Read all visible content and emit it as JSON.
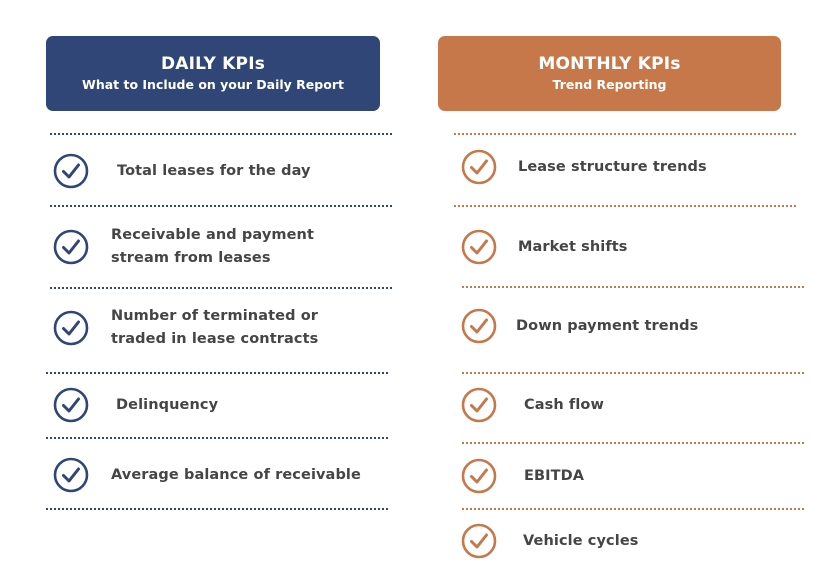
{
  "colors": {
    "daily_accent": "#2f4677",
    "monthly_accent": "#c7784a",
    "text": "#454545"
  },
  "daily": {
    "title": "DAILY KPIs",
    "subtitle": "What to Include on your Daily Report",
    "icon": "check-circle-icon",
    "items": [
      {
        "label": "Total leases for the day"
      },
      {
        "label": "Receivable and payment stream from leases"
      },
      {
        "label": "Number of terminated or traded in lease contracts"
      },
      {
        "label": "Delinquency"
      },
      {
        "label": "Average balance of receivable"
      }
    ]
  },
  "monthly": {
    "title": "MONTHLY KPIs",
    "subtitle": "Trend Reporting",
    "icon": "check-circle-icon",
    "items": [
      {
        "label": "Lease structure trends"
      },
      {
        "label": "Market shifts"
      },
      {
        "label": "Down payment trends"
      },
      {
        "label": "Cash flow"
      },
      {
        "label": "EBITDA"
      },
      {
        "label": "Vehicle cycles"
      }
    ]
  }
}
